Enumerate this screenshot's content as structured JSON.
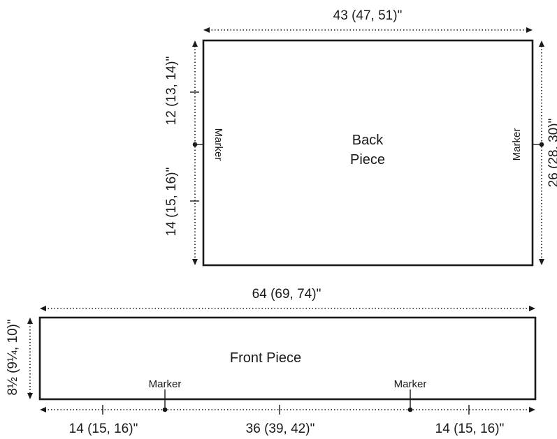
{
  "back_piece": {
    "label_line1": "Back",
    "label_line2": "Piece",
    "width_label": "43 (47, 51)\"",
    "height_label": "26 (28, 30)\"",
    "upper_segment_label": "12 (13, 14)\"",
    "lower_segment_label": "14 (15, 16)\"",
    "marker_left": "Marker",
    "marker_right": "Marker"
  },
  "front_piece": {
    "label": "Front Piece",
    "width_label": "64 (69, 74)\"",
    "height_label": "8½ (9¼, 10)\"",
    "left_segment_label": "14 (15, 16)\"",
    "middle_segment_label": "36 (39, 42)\"",
    "right_segment_label": "14 (15, 16)\"",
    "marker_left": "Marker",
    "marker_right": "Marker"
  }
}
